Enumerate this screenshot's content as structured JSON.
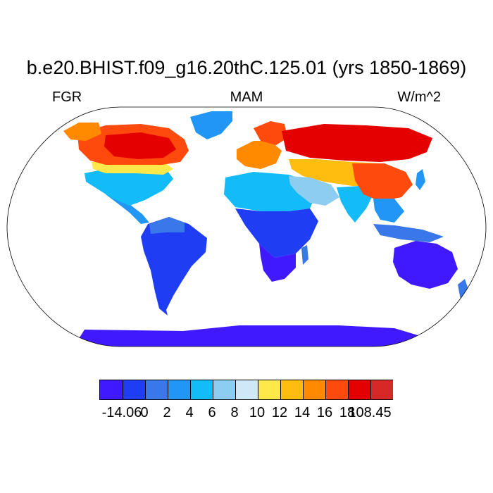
{
  "title": "b.e20.BHIST.f09_g16.20thC.125.01 (yrs 1850-1869)",
  "left_label": "FGR",
  "center_label": "MAM",
  "right_label": "W/m^2",
  "colorbar": {
    "colors": [
      "#4019ff",
      "#1f3df2",
      "#3878e8",
      "#2196f5",
      "#13bbf7",
      "#8ecdf2",
      "#cfe8f8",
      "#ffe84a",
      "#ffbd10",
      "#ff8a00",
      "#ff4a0d",
      "#e50000",
      "#d72828"
    ],
    "labels": [
      "-14.06",
      "0",
      "2",
      "4",
      "6",
      "8",
      "10",
      "12",
      "14",
      "16",
      "18",
      "108.45"
    ]
  },
  "map_regions": [
    {
      "name": "antarctica",
      "color": "#4019ff"
    },
    {
      "name": "south-america",
      "color": "#1f3df2"
    },
    {
      "name": "south-america-north",
      "color": "#3878e8"
    },
    {
      "name": "central-america",
      "color": "#2196f5"
    },
    {
      "name": "north-america-south",
      "color": "#13bbf7"
    },
    {
      "name": "north-america-mid",
      "color": "#ffe84a"
    },
    {
      "name": "canada",
      "color": "#ff4a0d"
    },
    {
      "name": "canada-core",
      "color": "#e50000"
    },
    {
      "name": "alaska",
      "color": "#ff8a00"
    },
    {
      "name": "greenland",
      "color": "#2196f5"
    },
    {
      "name": "africa-north",
      "color": "#13bbf7"
    },
    {
      "name": "africa-central",
      "color": "#1f3df2"
    },
    {
      "name": "africa-south",
      "color": "#4019ff"
    },
    {
      "name": "europe",
      "color": "#ff8a00"
    },
    {
      "name": "scandinavia",
      "color": "#ff4a0d"
    },
    {
      "name": "russia",
      "color": "#e50000"
    },
    {
      "name": "central-asia",
      "color": "#ffbd10"
    },
    {
      "name": "middle-east",
      "color": "#8ecdf2"
    },
    {
      "name": "india",
      "color": "#13bbf7"
    },
    {
      "name": "china",
      "color": "#ff4a0d"
    },
    {
      "name": "southeast-asia",
      "color": "#2196f5"
    },
    {
      "name": "indonesia",
      "color": "#3878e8"
    },
    {
      "name": "australia",
      "color": "#4019ff"
    },
    {
      "name": "new-zealand",
      "color": "#3878e8"
    },
    {
      "name": "madagascar",
      "color": "#3878e8"
    },
    {
      "name": "japan",
      "color": "#2196f5"
    }
  ]
}
